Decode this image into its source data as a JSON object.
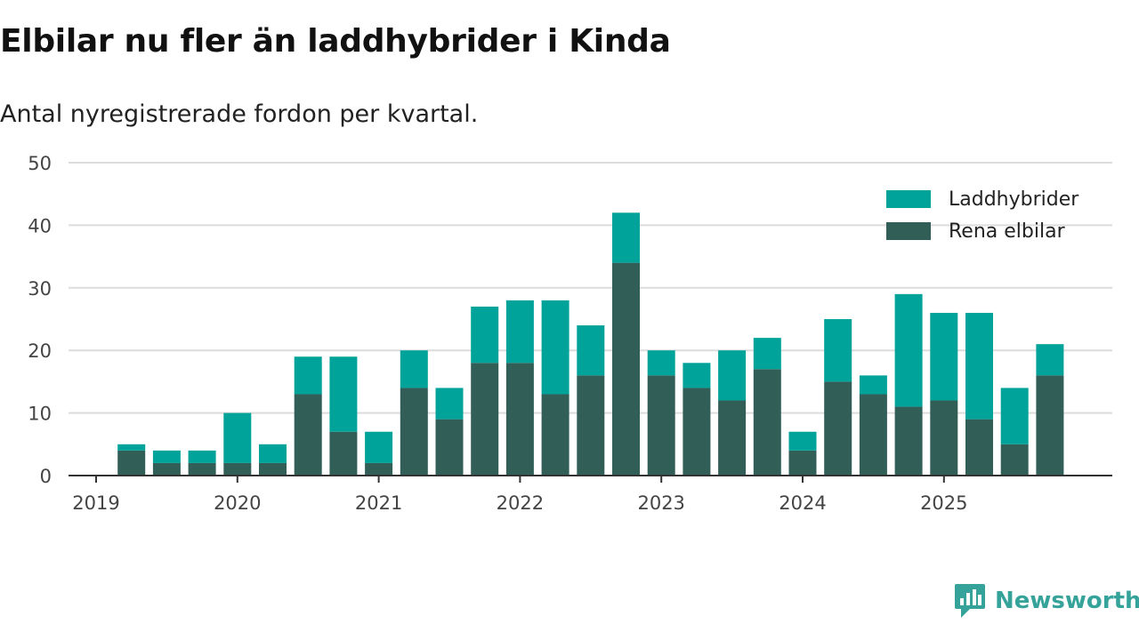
{
  "title": "Elbilar nu fler än laddhybrider i Kinda",
  "subtitle": "Antal nyregistrerade fordon per kvartal.",
  "brand": {
    "name": "Newsworthy",
    "icon": "newsworthy-logo-icon"
  },
  "colors": {
    "electric": "#325e58",
    "hybrid": "#00a39a",
    "grid": "#dcdcdc",
    "axis": "#333333",
    "brand": "#35a39a"
  },
  "chart_data": {
    "type": "bar",
    "stacked": true,
    "title": "Elbilar nu fler än laddhybrider i Kinda",
    "subtitle": "Antal nyregistrerade fordon per kvartal.",
    "xlabel": "",
    "ylabel": "",
    "ylim": [
      0,
      50
    ],
    "yticks": [
      0,
      10,
      20,
      30,
      40,
      50
    ],
    "xtick_labels": [
      "2019",
      "2020",
      "2021",
      "2022",
      "2023",
      "2024",
      "2025"
    ],
    "xtick_positions": [
      0,
      4,
      8,
      12,
      16,
      20,
      24
    ],
    "categories": [
      "2019-Q2",
      "2019-Q3",
      "2019-Q4",
      "2020-Q1",
      "2020-Q2",
      "2020-Q3",
      "2020-Q4",
      "2021-Q1",
      "2021-Q2",
      "2021-Q3",
      "2021-Q4",
      "2022-Q1",
      "2022-Q2",
      "2022-Q3",
      "2022-Q4",
      "2023-Q1",
      "2023-Q2",
      "2023-Q3",
      "2023-Q4",
      "2024-Q1",
      "2024-Q2",
      "2024-Q3",
      "2024-Q4",
      "2025-Q1",
      "2025-Q2",
      "2025-Q3",
      "2025-Q4"
    ],
    "x": [
      1,
      2,
      3,
      4,
      5,
      6,
      7,
      8,
      9,
      10,
      11,
      12,
      13,
      14,
      15,
      16,
      17,
      18,
      19,
      20,
      21,
      22,
      23,
      24,
      25,
      26,
      27
    ],
    "series": [
      {
        "name": "Rena elbilar",
        "color": "#325e58",
        "values": [
          4,
          2,
          2,
          2,
          2,
          13,
          7,
          2,
          14,
          9,
          18,
          18,
          13,
          16,
          34,
          16,
          14,
          12,
          17,
          4,
          15,
          13,
          11,
          12,
          9,
          5,
          16
        ]
      },
      {
        "name": "Laddhybrider",
        "color": "#00a39a",
        "values": [
          1,
          2,
          2,
          8,
          3,
          6,
          12,
          5,
          6,
          5,
          9,
          10,
          15,
          8,
          8,
          4,
          4,
          8,
          5,
          3,
          10,
          3,
          18,
          14,
          17,
          9,
          5
        ]
      }
    ],
    "legend": {
      "position": "top-right",
      "order": [
        "Laddhybrider",
        "Rena elbilar"
      ]
    },
    "grid": true
  }
}
